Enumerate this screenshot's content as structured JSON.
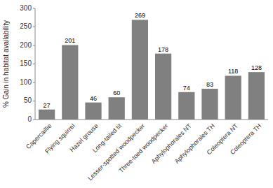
{
  "chart_data": {
    "type": "bar",
    "categories": [
      "Capercaillie",
      "Flying squirrel",
      "Hazel grouse",
      "Long-tailed tit",
      "Lesser-spotted woodpecker",
      "Three-toed woodpecker",
      "Aphylophorales NT",
      "Aphylophorales TH",
      "Coleoptera NT",
      "Coleoptera TH"
    ],
    "values": [
      27,
      201,
      46,
      60,
      269,
      178,
      74,
      83,
      118,
      128
    ],
    "color": "#808080",
    "ylabel": "% Gain in habitat availability",
    "ylim": [
      0,
      300
    ],
    "yticks": [
      0,
      50,
      100,
      150,
      200,
      250,
      300
    ],
    "grid": false,
    "data_labels": true
  }
}
